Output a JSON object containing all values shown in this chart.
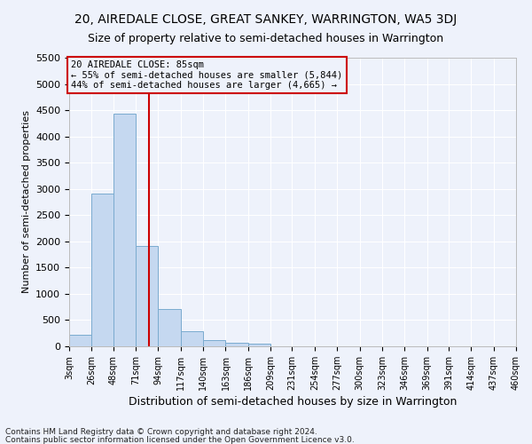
{
  "title": "20, AIREDALE CLOSE, GREAT SANKEY, WARRINGTON, WA5 3DJ",
  "subtitle": "Size of property relative to semi-detached houses in Warrington",
  "xlabel": "Distribution of semi-detached houses by size in Warrington",
  "ylabel": "Number of semi-detached properties",
  "footnote1": "Contains HM Land Registry data © Crown copyright and database right 2024.",
  "footnote2": "Contains public sector information licensed under the Open Government Licence v3.0.",
  "bin_edges": [
    3,
    26,
    48,
    71,
    94,
    117,
    140,
    163,
    186,
    209,
    231,
    254,
    277,
    300,
    323,
    346,
    369,
    391,
    414,
    437,
    460
  ],
  "bin_labels": [
    "3sqm",
    "26sqm",
    "48sqm",
    "71sqm",
    "94sqm",
    "117sqm",
    "140sqm",
    "163sqm",
    "186sqm",
    "209sqm",
    "231sqm",
    "254sqm",
    "277sqm",
    "300sqm",
    "323sqm",
    "346sqm",
    "369sqm",
    "391sqm",
    "414sqm",
    "437sqm",
    "460sqm"
  ],
  "bar_values": [
    220,
    2910,
    4430,
    1920,
    710,
    280,
    115,
    70,
    55,
    0,
    0,
    0,
    0,
    0,
    0,
    0,
    0,
    0,
    0,
    0
  ],
  "bar_color": "#c5d8f0",
  "bar_edge_color": "#7aabcf",
  "property_size": 85,
  "property_label": "20 AIREDALE CLOSE: 85sqm",
  "annotation_line1": "← 55% of semi-detached houses are smaller (5,844)",
  "annotation_line2": "44% of semi-detached houses are larger (4,665) →",
  "vline_color": "#cc0000",
  "annotation_box_edge_color": "#cc0000",
  "ylim": [
    0,
    5500
  ],
  "yticks": [
    0,
    500,
    1000,
    1500,
    2000,
    2500,
    3000,
    3500,
    4000,
    4500,
    5000,
    5500
  ],
  "background_color": "#eef2fb",
  "grid_color": "#ffffff",
  "title_fontsize": 10,
  "subtitle_fontsize": 9
}
